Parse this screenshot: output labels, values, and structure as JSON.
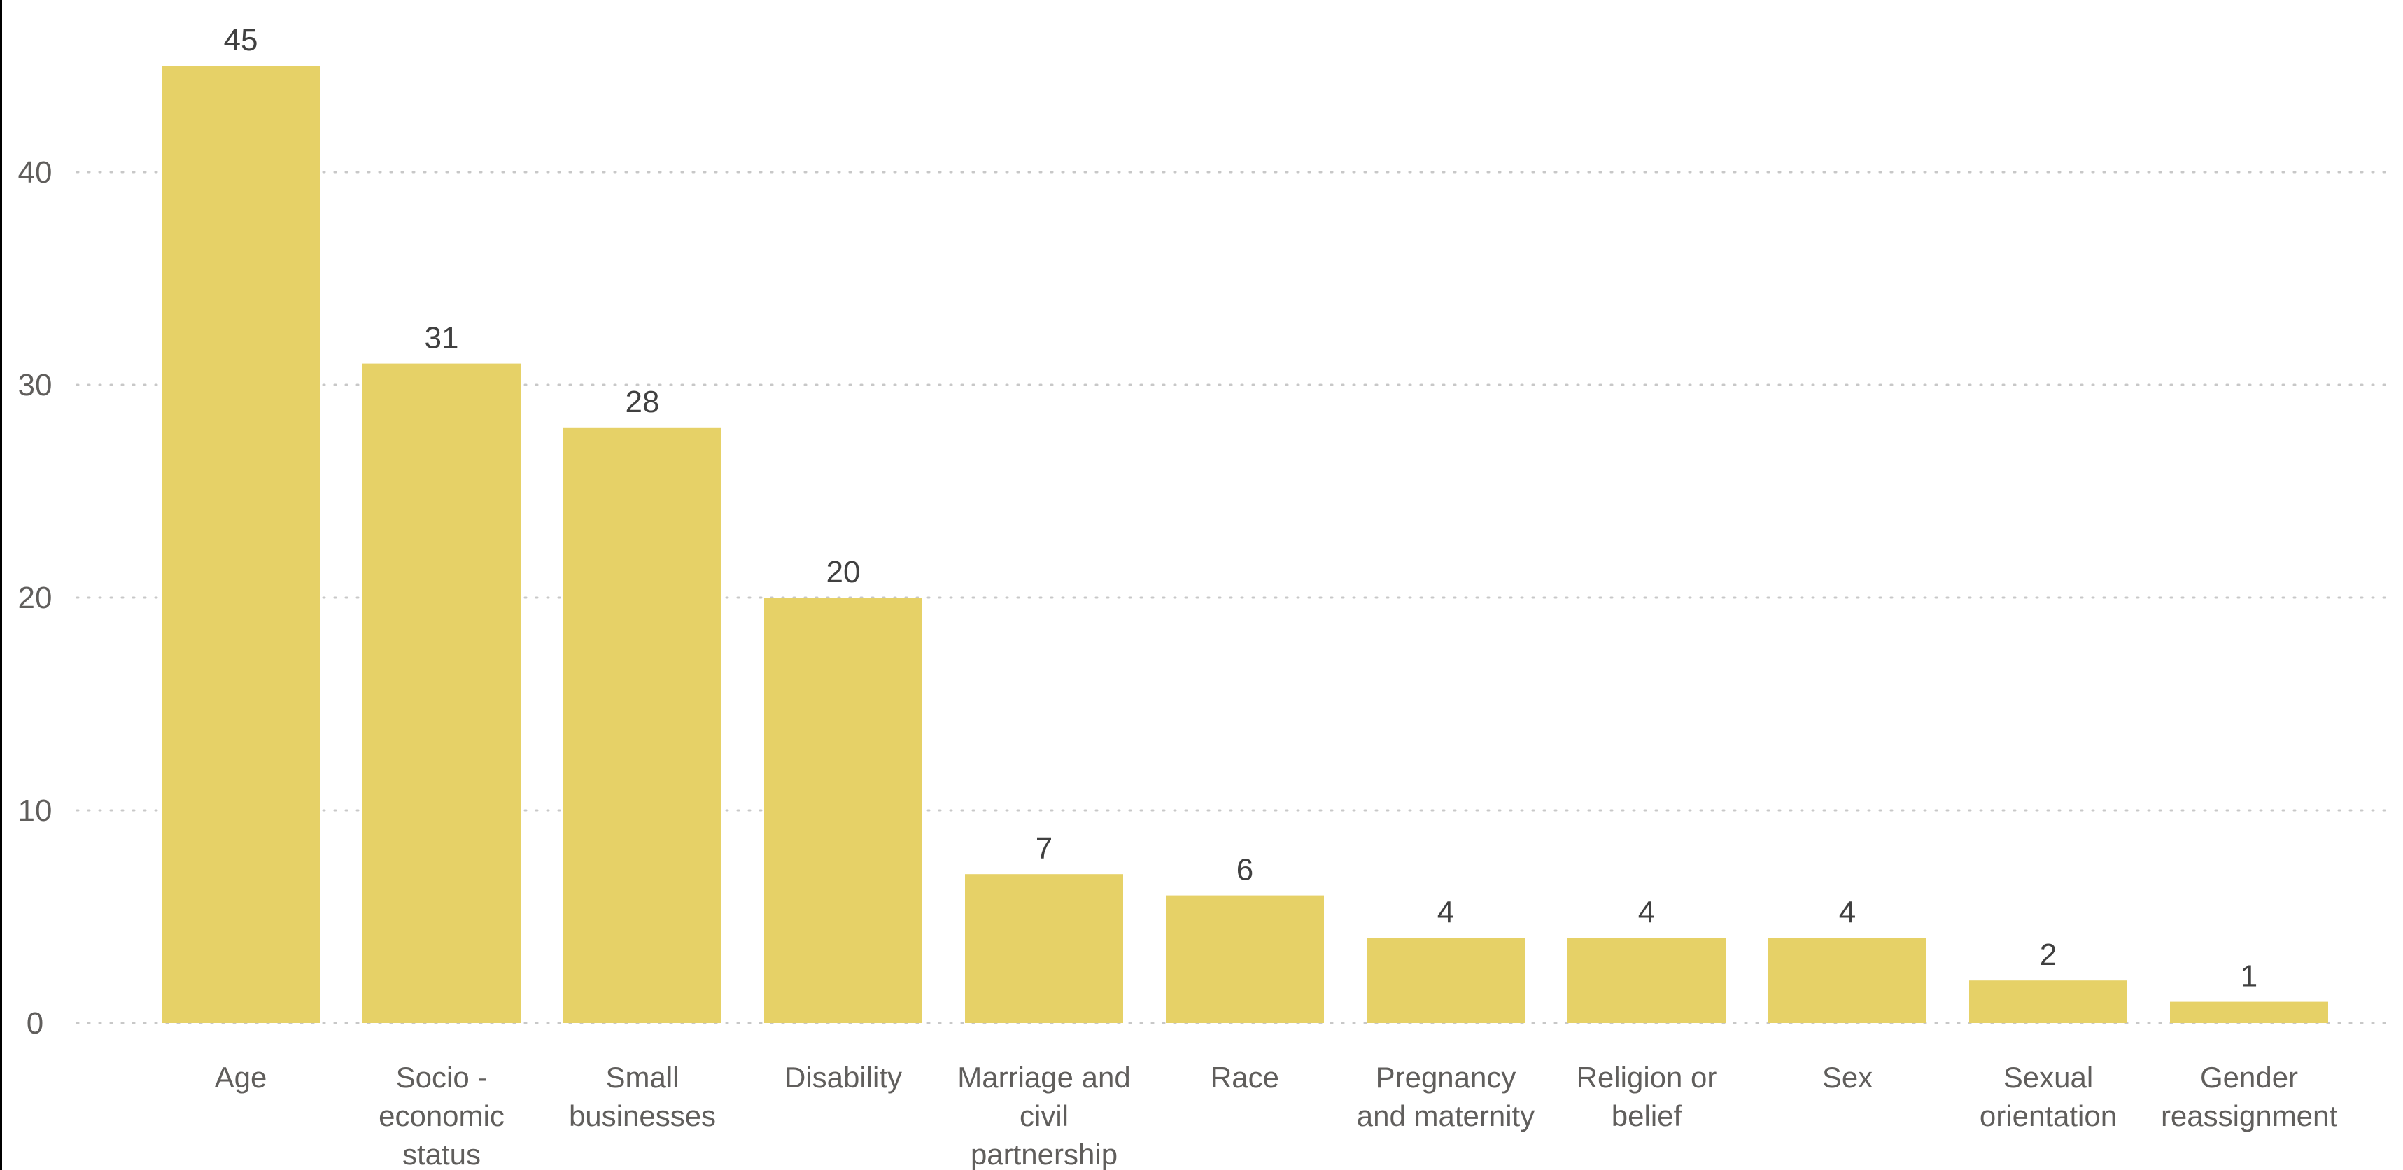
{
  "chart_data": {
    "type": "bar",
    "title": "",
    "xlabel": "",
    "ylabel": "",
    "categories": [
      [
        "Age"
      ],
      [
        "Socio -",
        "economic",
        "status"
      ],
      [
        "Small",
        "businesses"
      ],
      [
        "Disability"
      ],
      [
        "Marriage and",
        "civil",
        "partnership"
      ],
      [
        "Race"
      ],
      [
        "Pregnancy",
        "and maternity"
      ],
      [
        "Religion or",
        "belief"
      ],
      [
        "Sex"
      ],
      [
        "Sexual",
        "orientation"
      ],
      [
        "Gender",
        "reassignment"
      ]
    ],
    "values": [
      45,
      31,
      28,
      20,
      7,
      6,
      4,
      4,
      4,
      2,
      1
    ],
    "ylim": [
      0,
      45
    ],
    "yticks": [
      0,
      10,
      20,
      30,
      40
    ],
    "grid": true,
    "grid_style": "dotted",
    "data_labels": true,
    "colors": {
      "bar": "#E6D167",
      "grid": "#C8C8C8",
      "tick_text": "#605E5C",
      "label_text": "#404040",
      "axis_border": "#000000"
    }
  }
}
